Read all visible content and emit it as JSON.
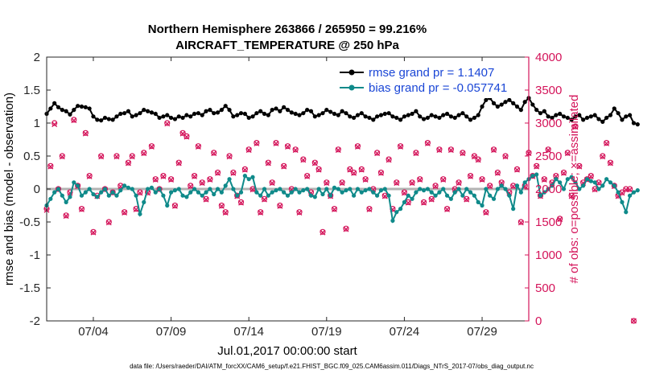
{
  "chart_data": {
    "type": "line",
    "title_line1": "Northern Hemisphere 263866 / 265950 = 99.216%",
    "title_line2": "AIRCRAFT_TEMPERATURE @ 250 hPa",
    "ylabel_left": "rmse and bias (model - observation)",
    "ylabel_right": "# of obs: o=possible; ×=assimilated",
    "xlabel": "Jul.01,2017 00:00:00 start",
    "footer": "data file: /Users/raeder/DAI/ATM_forcXX/CAM6_setup/f.e21.FHIST_BGC.f09_025.CAM6assim.011/Diags_NTrS_2017-07/obs_diag_output.nc",
    "ylim_left": [
      -2,
      2
    ],
    "ylim_right": [
      0,
      4000
    ],
    "xlim_days": [
      1.0,
      32.0
    ],
    "x_ticks": [
      {
        "day": 4,
        "label": "07/04"
      },
      {
        "day": 9,
        "label": "07/09"
      },
      {
        "day": 14,
        "label": "07/14"
      },
      {
        "day": 19,
        "label": "07/19"
      },
      {
        "day": 24,
        "label": "07/24"
      },
      {
        "day": 29,
        "label": "07/29"
      }
    ],
    "y_ticks_left": [
      {
        "v": 2,
        "label": "2"
      },
      {
        "v": 1.5,
        "label": "1.5"
      },
      {
        "v": 1,
        "label": "1"
      },
      {
        "v": 0.5,
        "label": "0.5"
      },
      {
        "v": 0,
        "label": "0"
      },
      {
        "v": -0.5,
        "label": "-0.5"
      },
      {
        "v": -1,
        "label": "-1"
      },
      {
        "v": -1.5,
        "label": "-1.5"
      },
      {
        "v": -2,
        "label": "-2"
      }
    ],
    "y_ticks_right": [
      {
        "v": 4000,
        "label": "4000"
      },
      {
        "v": 3500,
        "label": "3500"
      },
      {
        "v": 3000,
        "label": "3000"
      },
      {
        "v": 2500,
        "label": "2500"
      },
      {
        "v": 2000,
        "label": "2000"
      },
      {
        "v": 1500,
        "label": "1500"
      },
      {
        "v": 1000,
        "label": "1000"
      },
      {
        "v": 500,
        "label": "500"
      },
      {
        "v": 0,
        "label": "0"
      }
    ],
    "colors": {
      "rmse": "#000000",
      "bias": "#0f8a8a",
      "obs": "#d4145a",
      "zero_line": "#b3b3b3",
      "legend_text": "#1a46d6"
    },
    "series": [
      {
        "name": "rmse",
        "legend": "rmse grand pr = 1.1407",
        "x_start_day": 1.0,
        "x_step_days": 0.25,
        "values": [
          1.14,
          1.22,
          1.3,
          1.24,
          1.2,
          1.18,
          1.13,
          1.2,
          1.26,
          1.25,
          1.24,
          1.22,
          1.1,
          1.05,
          1.04,
          1.08,
          1.06,
          1.05,
          1.1,
          1.14,
          1.15,
          1.18,
          1.1,
          1.12,
          1.15,
          1.2,
          1.18,
          1.16,
          1.14,
          1.08,
          1.1,
          1.12,
          1.08,
          1.06,
          1.1,
          1.08,
          1.12,
          1.1,
          1.14,
          1.15,
          1.12,
          1.18,
          1.2,
          1.15,
          1.16,
          1.2,
          1.26,
          1.2,
          1.1,
          1.12,
          1.15,
          1.14,
          1.08,
          1.1,
          1.15,
          1.18,
          1.14,
          1.12,
          1.2,
          1.22,
          1.18,
          1.24,
          1.2,
          1.16,
          1.14,
          1.12,
          1.15,
          1.2,
          1.18,
          1.1,
          1.12,
          1.15,
          1.2,
          1.17,
          1.14,
          1.12,
          1.18,
          1.15,
          1.1,
          1.08,
          1.12,
          1.15,
          1.1,
          1.08,
          1.05,
          1.1,
          1.12,
          1.14,
          1.15,
          1.1,
          1.08,
          1.05,
          1.1,
          1.12,
          1.14,
          1.18,
          1.1,
          1.06,
          1.08,
          1.12,
          1.1,
          1.08,
          1.12,
          1.14,
          1.1,
          1.08,
          1.12,
          1.15,
          1.1,
          1.05,
          1.08,
          1.12,
          1.25,
          1.35,
          1.38,
          1.3,
          1.25,
          1.28,
          1.32,
          1.35,
          1.3,
          1.25,
          1.2,
          1.32,
          1.38,
          1.28,
          1.2,
          1.15,
          1.18,
          1.1,
          1.08,
          1.12,
          1.14,
          1.1,
          1.08,
          1.05,
          1.1,
          1.12,
          1.05,
          1.08,
          1.1,
          1.12,
          1.06,
          1.02,
          1.08,
          1.12,
          1.22,
          1.15,
          1.05,
          1.1,
          1.12,
          1.0,
          0.98
        ]
      },
      {
        "name": "bias",
        "legend": "bias grand pr = -0.057741",
        "x_start_day": 1.0,
        "x_step_days": 0.25,
        "values": [
          -0.25,
          -0.15,
          -0.05,
          0.0,
          -0.1,
          -0.2,
          -0.12,
          0.1,
          0.05,
          -0.1,
          -0.05,
          0.0,
          -0.08,
          -0.12,
          -0.05,
          0.0,
          -0.1,
          -0.05,
          -0.1,
          -0.02,
          0.05,
          0.02,
          0.0,
          -0.1,
          -0.38,
          -0.2,
          0.0,
          0.02,
          -0.05,
          0.0,
          -0.1,
          -0.25,
          -0.05,
          -0.02,
          0.0,
          -0.1,
          -0.12,
          -0.05,
          0.0,
          -0.05,
          -0.1,
          -0.05,
          0.0,
          -0.08,
          0.0,
          -0.05,
          0.05,
          0.15,
          0.0,
          -0.1,
          -0.05,
          0.2,
          0.15,
          0.18,
          -0.05,
          -0.1,
          0.0,
          -0.1,
          -0.05,
          -0.02,
          0.0,
          -0.05,
          -0.1,
          -0.05,
          0.0,
          -0.05,
          -0.02,
          0.0,
          -0.1,
          -0.12,
          0.0,
          -0.08,
          0.0,
          -0.1,
          0.02,
          0.0,
          -0.05,
          -0.02,
          0.0,
          -0.1,
          0.0,
          -0.05,
          -0.02,
          0.0,
          -0.05,
          -0.1,
          -0.02,
          0.0,
          -0.1,
          -0.48,
          -0.35,
          -0.3,
          -0.2,
          -0.1,
          -0.15,
          -0.05,
          0.0,
          -0.02,
          0.0,
          -0.05,
          -0.1,
          -0.05,
          0.0,
          -0.1,
          -0.15,
          -0.05,
          0.0,
          -0.1,
          0.0,
          -0.05,
          -0.1,
          -0.2,
          -0.25,
          0.0,
          -0.1,
          -0.15,
          0.0,
          0.05,
          0.0,
          -0.1,
          -0.3,
          0.05,
          -0.05,
          0.1,
          0.15,
          0.2,
          0.22,
          -0.1,
          -0.05,
          0.0,
          0.05,
          0.15,
          0.1,
          0.0,
          0.15,
          0.18,
          0.1,
          0.0,
          0.05,
          0.15,
          0.12,
          0.1,
          0.0,
          0.05,
          0.15,
          0.1,
          0.05,
          -0.05,
          -0.2,
          -0.35,
          -0.1,
          -0.05,
          -0.02
        ]
      },
      {
        "name": "possible",
        "marker": "circle",
        "axis": "right",
        "x_start_day": 1.0,
        "x_step_days": 0.25,
        "values": [
          1700,
          2350,
          3000,
          2000,
          2500,
          1600,
          1950,
          3050,
          2050,
          1700,
          2850,
          2200,
          1350,
          1900,
          2500,
          2000,
          1500,
          1950,
          2500,
          2050,
          1650,
          2400,
          2500,
          1700,
          1950,
          2550,
          1950,
          2650,
          2150,
          2000,
          2200,
          3000,
          2150,
          1750,
          2400,
          2850,
          2800,
          2050,
          2200,
          2650,
          2100,
          1850,
          2150,
          2550,
          2250,
          1750,
          1650,
          2500,
          2250,
          1900,
          1800,
          2300,
          2600,
          2000,
          2700,
          1650,
          1850,
          2400,
          2100,
          2700,
          1750,
          2350,
          2650,
          2000,
          2600,
          1650,
          2450,
          2200,
          1950,
          2400,
          2300,
          1350,
          2100,
          1900,
          1700,
          2600,
          2100,
          1400,
          2300,
          2250,
          2650,
          2300,
          2150,
          1700,
          2000,
          2550,
          2250,
          1900,
          2450,
          1700,
          2100,
          2650,
          1950,
          1800,
          2100,
          2550,
          2150,
          1800,
          2700,
          1850,
          2050,
          2600,
          2150,
          1700,
          2600,
          2000,
          2100,
          2550,
          1850,
          2200,
          2500,
          2450,
          2150,
          1650,
          2050,
          2600,
          2250,
          2100,
          2500,
          1950,
          2050,
          2300,
          1500,
          2050,
          2550,
          2200,
          2350,
          1900,
          2150,
          2600,
          2100,
          2200,
          1550,
          2250,
          2550,
          1900,
          2950,
          2350,
          2100,
          2150,
          2200,
          2000,
          2100,
          2500,
          2700,
          2400,
          2050,
          1900,
          1950,
          2000,
          2000,
          0
        ]
      },
      {
        "name": "assimilated",
        "marker": "x",
        "axis": "right",
        "x_start_day": 1.0,
        "x_step_days": 0.25,
        "values": [
          1680,
          2340,
          2980,
          1990,
          2490,
          1590,
          1940,
          3040,
          2040,
          1690,
          2840,
          2190,
          1340,
          1890,
          2490,
          1990,
          1490,
          1940,
          2490,
          2040,
          1640,
          2390,
          2490,
          1690,
          1940,
          2540,
          1940,
          2640,
          2140,
          1990,
          2190,
          2990,
          2140,
          1740,
          2390,
          2840,
          2790,
          2040,
          2190,
          2640,
          2090,
          1840,
          2140,
          2540,
          2240,
          1740,
          1640,
          2490,
          2240,
          1890,
          1790,
          2290,
          2590,
          1990,
          2690,
          1640,
          1840,
          2390,
          2090,
          2690,
          1740,
          2340,
          2640,
          1990,
          2590,
          1640,
          2440,
          2190,
          1940,
          2390,
          2290,
          1340,
          2090,
          1890,
          1690,
          2590,
          2090,
          1390,
          2290,
          2240,
          2640,
          2290,
          2140,
          1690,
          1990,
          2540,
          2240,
          1890,
          2440,
          1690,
          2090,
          2640,
          1940,
          1790,
          2090,
          2540,
          2140,
          1790,
          2690,
          1840,
          2040,
          2590,
          2140,
          1690,
          2590,
          1990,
          2090,
          2540,
          1840,
          2190,
          2490,
          2440,
          2140,
          1640,
          2040,
          2590,
          2240,
          2090,
          2490,
          1940,
          2040,
          2290,
          1490,
          2040,
          2540,
          2190,
          2340,
          1890,
          2140,
          2590,
          2090,
          2190,
          1540,
          2240,
          2540,
          1890,
          2940,
          2340,
          2090,
          2140,
          2190,
          1990,
          2090,
          2490,
          2690,
          2390,
          2040,
          1890,
          1940,
          1990,
          1990,
          0
        ]
      }
    ]
  }
}
